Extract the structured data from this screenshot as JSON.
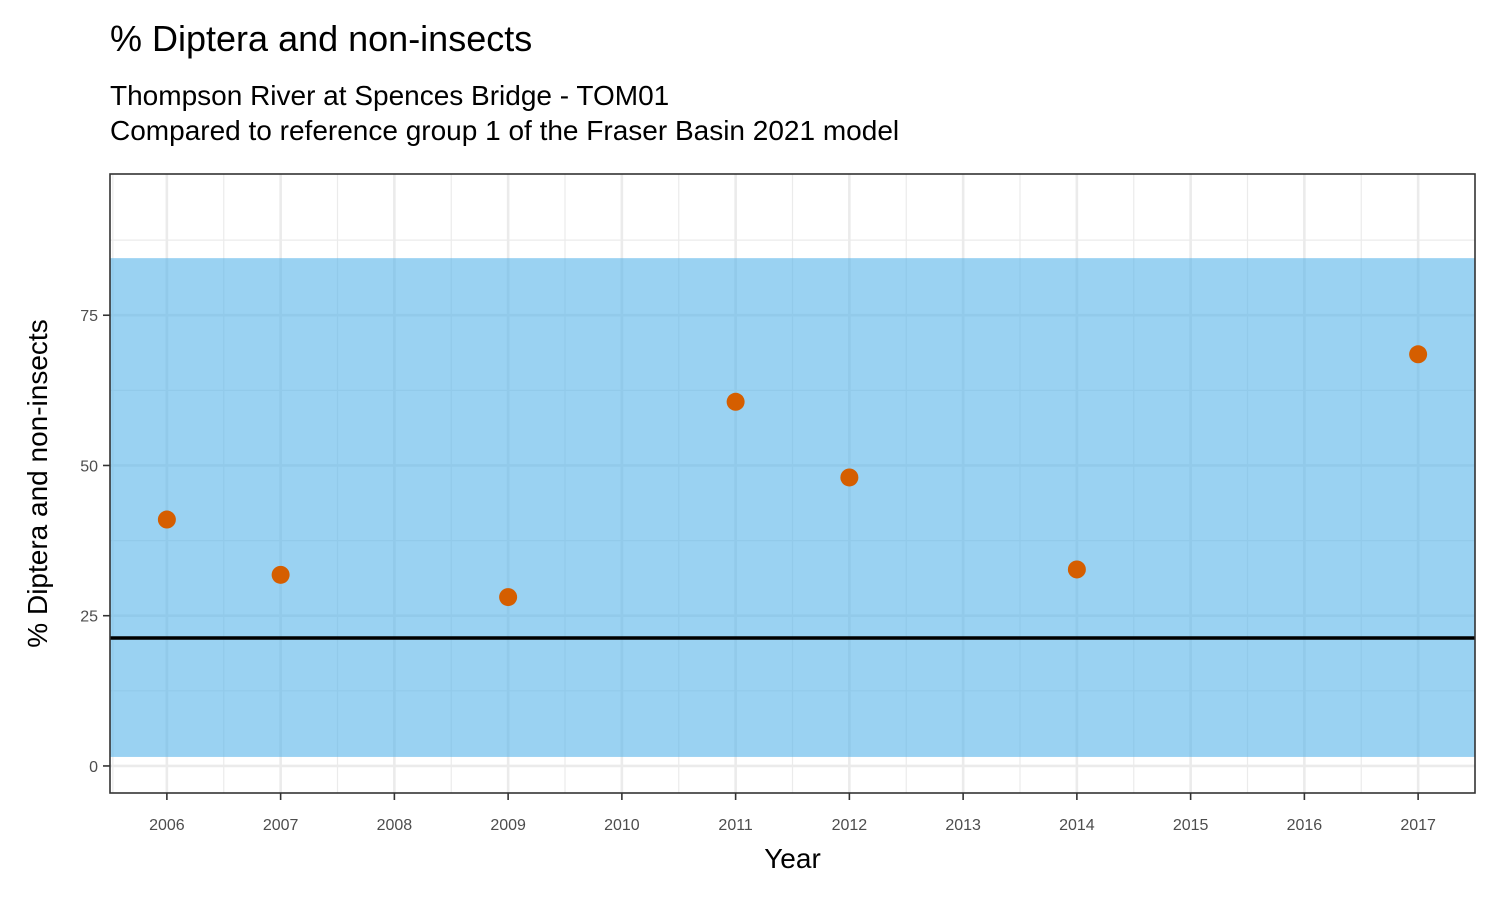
{
  "chart_data": {
    "type": "scatter",
    "title": "% Diptera and non-insects",
    "subtitle_line1": "Thompson River at Spences Bridge - TOM01",
    "subtitle_line2": "Compared to reference group 1 of the Fraser Basin 2021 model",
    "xlabel": "Year",
    "ylabel": "% Diptera and non-insects",
    "x_ticks": [
      2006,
      2007,
      2008,
      2009,
      2010,
      2011,
      2012,
      2013,
      2014,
      2015,
      2016,
      2017
    ],
    "y_ticks": [
      0,
      25,
      50,
      75
    ],
    "xlim": [
      2005.5,
      2017.5
    ],
    "ylim": [
      -4.5,
      98.5
    ],
    "series": [
      {
        "name": "% Diptera and non-insects",
        "x": [
          2006,
          2007,
          2009,
          2011,
          2012,
          2014,
          2017
        ],
        "y": [
          41.0,
          31.8,
          28.1,
          60.6,
          48.0,
          32.7,
          68.5
        ]
      }
    ],
    "reference_band": {
      "low": 1.5,
      "high": 84.5
    },
    "reference_line": 21.3,
    "grid": true,
    "colors": {
      "point": "#D55E00",
      "band": "#56B4E9",
      "line": "#000000",
      "grid": "#ebebeb",
      "panel_border": "#333333"
    }
  }
}
